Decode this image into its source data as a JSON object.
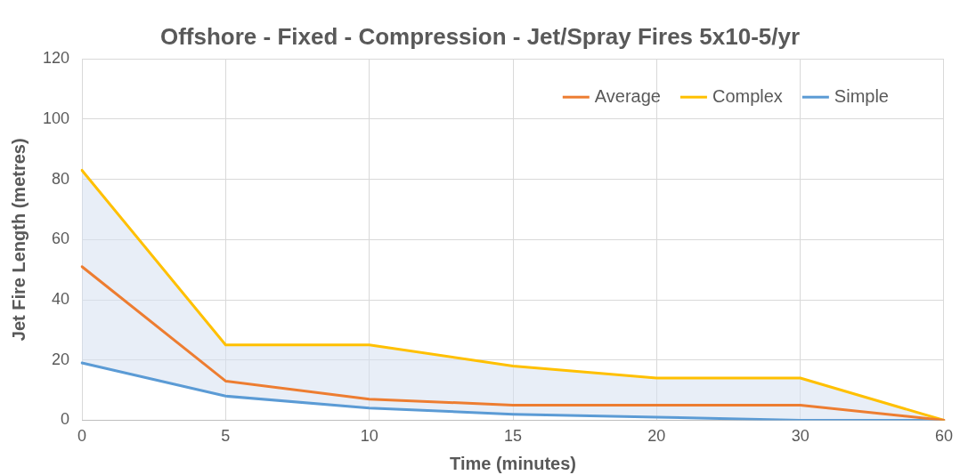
{
  "chart_data": {
    "type": "line",
    "title": "Offshore - Fixed - Compression - Jet/Spray Fires 5x10-5/yr",
    "xlabel": "Time (minutes)",
    "ylabel": "Jet Fire Length (metres)",
    "categories": [
      "0",
      "5",
      "10",
      "15",
      "20",
      "30",
      "60"
    ],
    "series": [
      {
        "name": "Average",
        "color": "#ed7d31",
        "values": [
          51,
          13,
          7,
          5,
          5,
          5,
          0
        ],
        "lower": [
          19,
          8,
          4,
          2,
          1,
          0,
          0
        ],
        "upper": [
          83,
          25,
          25,
          18,
          14,
          14,
          0
        ]
      },
      {
        "name": "Complex",
        "color": "#ffc000",
        "values": [
          83,
          25,
          25,
          18,
          14,
          14,
          0
        ]
      },
      {
        "name": "Simple",
        "color": "#5b9bd5",
        "values": [
          19,
          8,
          4,
          2,
          1,
          0,
          0
        ]
      }
    ],
    "ylim": [
      0,
      120
    ],
    "yticks": [
      0,
      20,
      40,
      60,
      80,
      100,
      120
    ],
    "grid": true,
    "legend": "top right",
    "marker": "none",
    "line_style": "solid"
  }
}
